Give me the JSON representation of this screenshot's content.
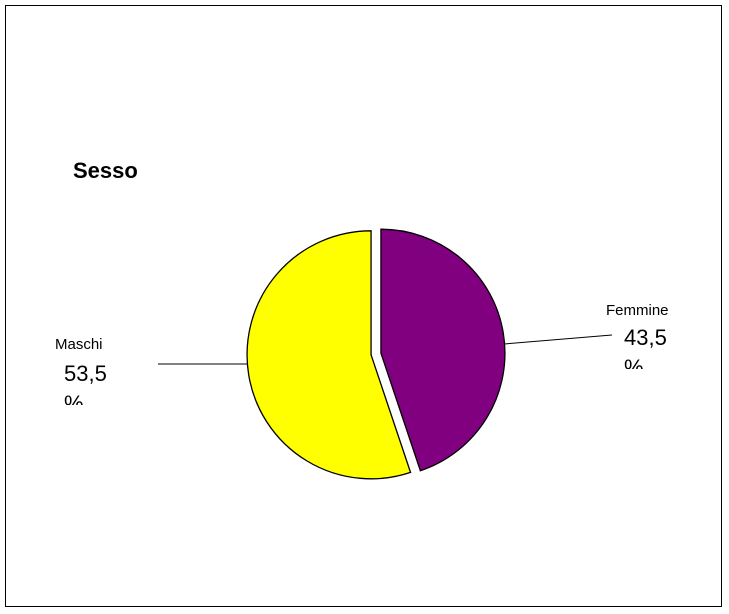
{
  "chart_data": {
    "type": "pie",
    "title": "Sesso",
    "slices": [
      {
        "name": "Femmine",
        "value": 43.5,
        "label": "43,5 %",
        "color": "#800080"
      },
      {
        "name": "Maschi",
        "value": 53.5,
        "label": "53,5 %",
        "color": "#FFFF00"
      }
    ],
    "exploded": true,
    "legend": "none"
  }
}
